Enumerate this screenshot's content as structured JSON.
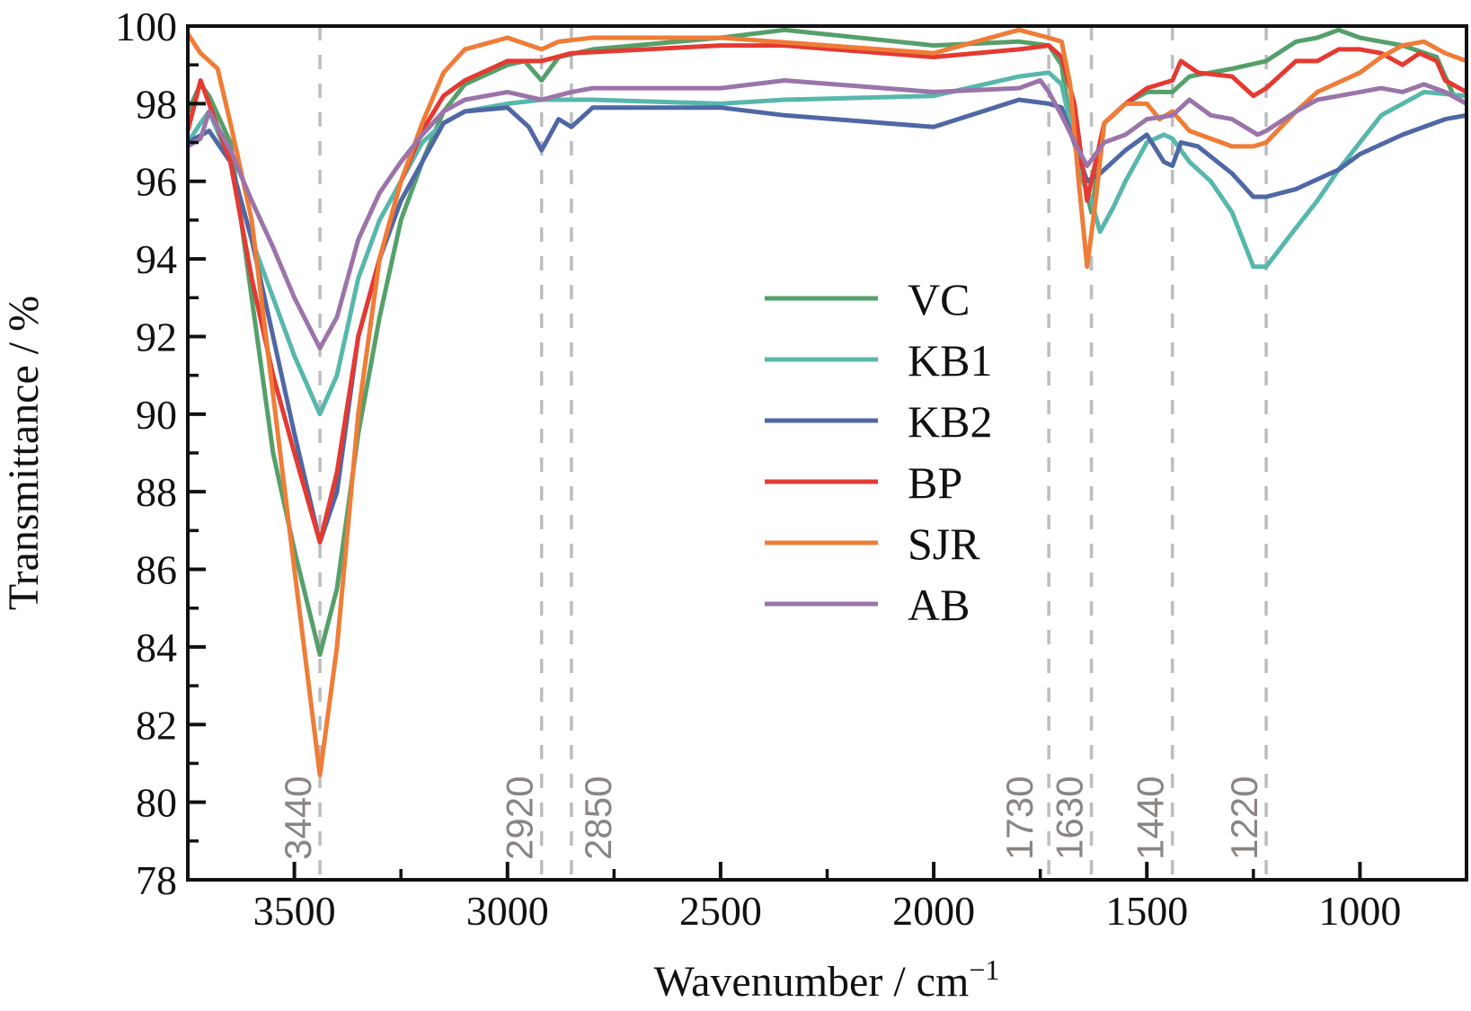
{
  "chart_data": {
    "type": "line",
    "xlabel": "Wavenumber / cm",
    "xlabel_sup": "−1",
    "ylabel": "Transmittance / %",
    "xlim": [
      3750,
      750
    ],
    "ylim": [
      78,
      100
    ],
    "x_ticks": [
      3500,
      3000,
      2500,
      2000,
      1500,
      1000
    ],
    "x_minor_step": 250,
    "y_ticks": [
      78,
      80,
      82,
      84,
      86,
      88,
      90,
      92,
      94,
      96,
      98,
      100
    ],
    "y_minor_step": 1,
    "grid": false,
    "legend_position": "center-right",
    "reference_lines": [
      {
        "x": 3440,
        "label": "3440"
      },
      {
        "x": 2920,
        "label": "2920"
      },
      {
        "x": 2850,
        "label": "2850"
      },
      {
        "x": 1730,
        "label": "1730"
      },
      {
        "x": 1630,
        "label": "1630"
      },
      {
        "x": 1440,
        "label": "1440"
      },
      {
        "x": 1220,
        "label": "1220"
      }
    ],
    "reference_line_color": "#bdbdbd",
    "series": [
      {
        "name": "VC",
        "color": "#55a06a",
        "x": [
          3750,
          3720,
          3700,
          3650,
          3600,
          3550,
          3500,
          3440,
          3400,
          3350,
          3300,
          3250,
          3200,
          3150,
          3100,
          3000,
          2960,
          2920,
          2880,
          2800,
          2500,
          2350,
          2000,
          1800,
          1730,
          1700,
          1680,
          1630,
          1600,
          1550,
          1500,
          1440,
          1400,
          1300,
          1220,
          1150,
          1100,
          1050,
          1000,
          900,
          820,
          780,
          750
        ],
        "y": [
          97.8,
          98.5,
          98.2,
          97,
          93,
          89,
          86.5,
          83.8,
          85.5,
          89.5,
          92.5,
          95,
          96.5,
          97.8,
          98.5,
          99,
          99.1,
          98.6,
          99.2,
          99.4,
          99.7,
          99.9,
          99.5,
          99.6,
          99.5,
          99,
          97.5,
          95.2,
          97.5,
          98,
          98.3,
          98.3,
          98.7,
          98.9,
          99.1,
          99.6,
          99.7,
          99.9,
          99.7,
          99.5,
          99.2,
          98.2,
          98
        ]
      },
      {
        "name": "KB1",
        "color": "#57b7ac",
        "x": [
          3750,
          3720,
          3700,
          3650,
          3600,
          3550,
          3500,
          3440,
          3400,
          3350,
          3300,
          3250,
          3200,
          3150,
          3100,
          3000,
          2920,
          2800,
          2500,
          2350,
          2000,
          1800,
          1730,
          1700,
          1680,
          1650,
          1630,
          1610,
          1580,
          1550,
          1500,
          1460,
          1440,
          1400,
          1350,
          1300,
          1250,
          1220,
          1150,
          1100,
          1050,
          1000,
          950,
          900,
          850,
          750
        ],
        "y": [
          97,
          97.5,
          97.8,
          96.5,
          94.5,
          93,
          91.5,
          90,
          91,
          93.5,
          95,
          96,
          97,
          97.5,
          97.8,
          98,
          98.1,
          98.1,
          98,
          98.1,
          98.2,
          98.7,
          98.8,
          98.5,
          97.5,
          96,
          95.5,
          94.7,
          95.3,
          96,
          97,
          97.2,
          97.1,
          96.5,
          96,
          95.2,
          93.8,
          93.8,
          94.8,
          95.5,
          96.3,
          97,
          97.7,
          98,
          98.3,
          98.2
        ]
      },
      {
        "name": "KB2",
        "color": "#4f67a5",
        "x": [
          3750,
          3700,
          3650,
          3600,
          3550,
          3500,
          3440,
          3400,
          3350,
          3300,
          3250,
          3200,
          3150,
          3100,
          3000,
          2950,
          2920,
          2880,
          2850,
          2800,
          2500,
          2350,
          2000,
          1800,
          1730,
          1700,
          1680,
          1640,
          1610,
          1550,
          1500,
          1460,
          1440,
          1420,
          1380,
          1300,
          1250,
          1220,
          1150,
          1050,
          1000,
          900,
          800,
          750
        ],
        "y": [
          97,
          97.3,
          96.5,
          94.5,
          92,
          89.5,
          86.7,
          88,
          92,
          94,
          95.5,
          96.5,
          97.5,
          97.8,
          97.9,
          97.4,
          96.8,
          97.6,
          97.4,
          97.9,
          97.9,
          97.7,
          97.4,
          98.1,
          98,
          97.9,
          97.3,
          96,
          96.2,
          96.8,
          97.2,
          96.5,
          96.4,
          97,
          96.9,
          96.2,
          95.6,
          95.6,
          95.8,
          96.3,
          96.7,
          97.2,
          97.6,
          97.7
        ]
      },
      {
        "name": "BP",
        "color": "#e43a32",
        "x": [
          3750,
          3720,
          3700,
          3650,
          3600,
          3550,
          3500,
          3440,
          3400,
          3350,
          3300,
          3250,
          3200,
          3150,
          3100,
          3000,
          2920,
          2850,
          2500,
          2350,
          2000,
          1800,
          1730,
          1700,
          1670,
          1640,
          1620,
          1600,
          1550,
          1500,
          1440,
          1420,
          1380,
          1300,
          1250,
          1220,
          1150,
          1100,
          1050,
          1000,
          950,
          900,
          860,
          820,
          800,
          750
        ],
        "y": [
          97.3,
          98.6,
          98,
          96.5,
          93.5,
          91,
          89,
          86.7,
          88.5,
          92,
          94,
          96,
          97.3,
          98.2,
          98.6,
          99.1,
          99.1,
          99.3,
          99.5,
          99.5,
          99.2,
          99.4,
          99.5,
          99.2,
          98,
          95.5,
          96.5,
          97.5,
          98,
          98.4,
          98.6,
          99.1,
          98.8,
          98.7,
          98.2,
          98.4,
          99.1,
          99.1,
          99.4,
          99.4,
          99.3,
          99,
          99.3,
          99.1,
          98.6,
          98.3
        ]
      },
      {
        "name": "SJR",
        "color": "#ef7c37",
        "x": [
          3750,
          3720,
          3680,
          3650,
          3600,
          3550,
          3500,
          3440,
          3400,
          3350,
          3300,
          3250,
          3200,
          3150,
          3100,
          3000,
          2920,
          2880,
          2800,
          2500,
          2000,
          1800,
          1730,
          1700,
          1680,
          1660,
          1640,
          1620,
          1600,
          1550,
          1500,
          1470,
          1440,
          1400,
          1300,
          1250,
          1220,
          1150,
          1100,
          1000,
          950,
          900,
          850,
          800,
          750
        ],
        "y": [
          99.8,
          99.3,
          98.9,
          97.5,
          95,
          90.5,
          86,
          80.7,
          84,
          90,
          94,
          96,
          97.5,
          98.8,
          99.4,
          99.7,
          99.4,
          99.6,
          99.7,
          99.7,
          99.3,
          99.9,
          99.7,
          99.6,
          98.5,
          96,
          93.8,
          95.5,
          97.5,
          98,
          98,
          97.6,
          97.8,
          97.3,
          96.9,
          96.9,
          97,
          97.8,
          98.3,
          98.8,
          99.2,
          99.5,
          99.6,
          99.3,
          99.1
        ]
      },
      {
        "name": "AB",
        "color": "#9b74a9",
        "x": [
          3750,
          3720,
          3700,
          3650,
          3600,
          3550,
          3500,
          3440,
          3400,
          3350,
          3300,
          3250,
          3200,
          3150,
          3100,
          3000,
          2920,
          2850,
          2800,
          2500,
          2350,
          2000,
          1800,
          1750,
          1730,
          1700,
          1660,
          1640,
          1600,
          1550,
          1500,
          1440,
          1400,
          1350,
          1300,
          1240,
          1220,
          1150,
          1100,
          1000,
          950,
          900,
          850,
          800,
          750
        ],
        "y": [
          96.9,
          97.1,
          97.8,
          96.8,
          95.5,
          94.3,
          93,
          91.7,
          92.5,
          94.5,
          95.7,
          96.5,
          97.2,
          97.8,
          98.1,
          98.3,
          98.1,
          98.3,
          98.4,
          98.4,
          98.6,
          98.3,
          98.4,
          98.6,
          98.3,
          97.7,
          96.8,
          96.4,
          97,
          97.2,
          97.6,
          97.7,
          98.1,
          97.7,
          97.6,
          97.2,
          97.3,
          97.8,
          98.1,
          98.3,
          98.4,
          98.3,
          98.5,
          98.3,
          98
        ]
      }
    ]
  }
}
